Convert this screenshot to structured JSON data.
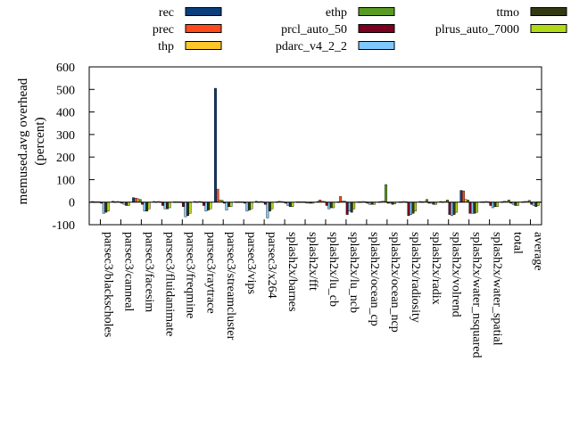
{
  "chart_data": {
    "type": "bar",
    "ylabel": "memused.avg overhead",
    "ylabel_unit": "(percent)",
    "ylim": [
      -100,
      600
    ],
    "yticks": [
      -100,
      0,
      100,
      200,
      300,
      400,
      500,
      600
    ],
    "legend_position": "top",
    "categories": [
      "parsec3/blackscholes",
      "parsec3/canneal",
      "parsec3/facesim",
      "parsec3/fluidanimate",
      "parsec3/freqmine",
      "parsec3/raytrace",
      "parsec3/streamcluster",
      "parsec3/vips",
      "parsec3/x264",
      "splash2x/barnes",
      "splash2x/fft",
      "splash2x/lu_cb",
      "splash2x/lu_ncb",
      "splash2x/ocean_cp",
      "splash2x/ocean_ncp",
      "splash2x/radiosity",
      "splash2x/radix",
      "splash2x/volrend",
      "splash2x/water_nsquared",
      "splash2x/water_spatial",
      "total",
      "average"
    ],
    "series": [
      {
        "name": "rec",
        "color": "#0b3e7c",
        "values": [
          3,
          4,
          20,
          3,
          2,
          3,
          505,
          2,
          4,
          2,
          2,
          3,
          2,
          2,
          2,
          2,
          3,
          3,
          52,
          2,
          2,
          2
        ]
      },
      {
        "name": "prec",
        "color": "#ff4a1c",
        "values": [
          2,
          2,
          18,
          2,
          2,
          2,
          58,
          2,
          2,
          4,
          2,
          10,
          25,
          2,
          3,
          2,
          2,
          2,
          50,
          2,
          4,
          3
        ]
      },
      {
        "name": "thp",
        "color": "#ffc72a",
        "values": [
          2,
          3,
          15,
          3,
          2,
          3,
          10,
          2,
          3,
          3,
          2,
          4,
          5,
          3,
          5,
          3,
          3,
          3,
          12,
          3,
          3,
          3
        ]
      },
      {
        "name": "ethp",
        "color": "#5a9a23",
        "values": [
          2,
          2,
          12,
          2,
          1,
          2,
          8,
          2,
          2,
          2,
          2,
          3,
          4,
          2,
          78,
          2,
          12,
          10,
          10,
          2,
          10,
          8
        ]
      },
      {
        "name": "prcl_auto_50",
        "color": "#7a0020",
        "values": [
          -5,
          -5,
          -10,
          -15,
          -20,
          -15,
          -5,
          -5,
          -10,
          -5,
          -3,
          -15,
          -55,
          -5,
          -5,
          -60,
          -5,
          -55,
          -50,
          -15,
          -5,
          -10
        ]
      },
      {
        "name": "pdarc_v4_2_2",
        "color": "#7fc8ff",
        "values": [
          -50,
          -10,
          -40,
          -30,
          -65,
          -40,
          -35,
          -40,
          -70,
          -15,
          -5,
          -30,
          -40,
          -10,
          -5,
          -55,
          -5,
          -60,
          -50,
          -25,
          -10,
          -15
        ]
      },
      {
        "name": "ttmo",
        "color": "#333a12",
        "values": [
          -45,
          -15,
          -40,
          -30,
          -60,
          -35,
          -20,
          -35,
          -40,
          -20,
          -5,
          -25,
          -45,
          -10,
          -10,
          -50,
          -10,
          -55,
          -50,
          -20,
          -15,
          -20
        ]
      },
      {
        "name": "plrus_auto_7000",
        "color": "#b2d918",
        "values": [
          -40,
          -15,
          -30,
          -25,
          -50,
          -30,
          -20,
          -30,
          -30,
          -20,
          -5,
          -25,
          -30,
          -10,
          -8,
          -40,
          -10,
          -45,
          -45,
          -20,
          -15,
          -15
        ]
      }
    ]
  }
}
